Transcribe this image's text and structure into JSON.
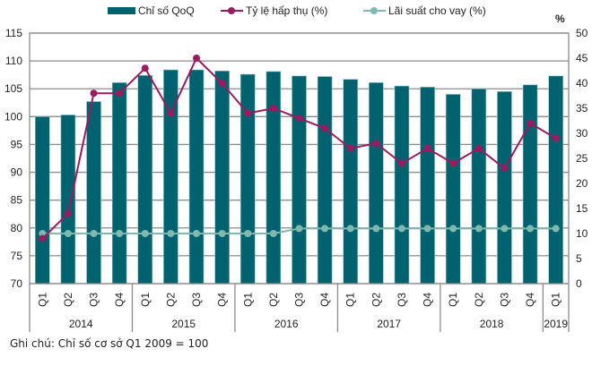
{
  "chart_data": {
    "type": "bar",
    "title": "",
    "categories": [
      "Q1",
      "Q2",
      "Q3",
      "Q4",
      "Q1",
      "Q2",
      "Q3",
      "Q4",
      "Q1",
      "Q2",
      "Q3",
      "Q4",
      "Q1",
      "Q2",
      "Q3",
      "Q4",
      "Q1",
      "Q2",
      "Q3",
      "Q4",
      "Q1"
    ],
    "groups": [
      {
        "label": "2014",
        "count": 4
      },
      {
        "label": "2015",
        "count": 4
      },
      {
        "label": "2016",
        "count": 4
      },
      {
        "label": "2017",
        "count": 4
      },
      {
        "label": "2018",
        "count": 4
      },
      {
        "label": "2019",
        "count": 1
      }
    ],
    "series": [
      {
        "name": "Chỉ số QoQ",
        "type": "bar",
        "axis": "left",
        "color": "#00626E",
        "values": [
          100.0,
          100.3,
          102.7,
          106.1,
          107.4,
          108.4,
          108.4,
          108.2,
          107.6,
          108.1,
          107.3,
          107.2,
          106.7,
          106.1,
          105.5,
          105.3,
          104.0,
          105.0,
          104.5,
          105.7,
          107.3
        ]
      },
      {
        "name": "Tỷ lệ hấp thụ (%)",
        "type": "line",
        "axis": "right",
        "color": "#9B1B5F",
        "values": [
          9,
          14,
          38,
          38,
          43,
          34,
          45,
          40,
          34,
          35,
          33,
          31,
          27,
          28,
          24,
          27,
          24,
          27,
          23,
          32,
          29
        ]
      },
      {
        "name": "Lãi suất cho vay (%)",
        "type": "line",
        "axis": "right",
        "color": "#7FB9AD",
        "values": [
          10,
          10,
          10,
          10,
          10,
          10,
          10,
          10,
          10,
          10,
          11,
          11,
          11,
          11,
          11,
          11,
          11,
          11,
          11,
          11,
          11
        ]
      }
    ],
    "left_axis": {
      "label": "",
      "ylim": [
        70,
        115
      ],
      "ticks": [
        70,
        75,
        80,
        85,
        90,
        95,
        100,
        105,
        110,
        115
      ]
    },
    "right_axis": {
      "label": "%",
      "ylim": [
        0,
        50
      ],
      "ticks": [
        0,
        5,
        10,
        15,
        20,
        25,
        30,
        35,
        40,
        45,
        50
      ]
    },
    "grid": true,
    "legend_position": "top-center"
  },
  "legend": [
    {
      "label": "Chỉ số QoQ",
      "kind": "bar"
    },
    {
      "label": "Tỷ lệ hấp thụ (%)",
      "kind": "line"
    },
    {
      "label": "Lãi suất cho vay (%)",
      "kind": "line"
    }
  ],
  "right_axis_unit": "%",
  "note": "Ghi chú: Chỉ số cơ sở  Q1 2009 = 100"
}
